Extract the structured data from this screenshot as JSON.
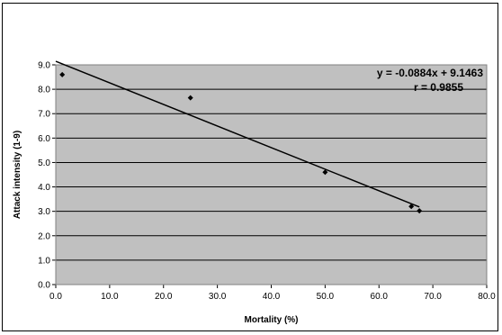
{
  "chart_data": {
    "type": "scatter",
    "xlabel": "Mortality (%)",
    "ylabel": "Attack intensity (1-9)",
    "xlim": [
      0,
      80
    ],
    "ylim": [
      0,
      9
    ],
    "x_ticks": [
      "0.0",
      "10.0",
      "20.0",
      "30.0",
      "40.0",
      "50.0",
      "60.0",
      "70.0",
      "80.0"
    ],
    "y_ticks": [
      "0.0",
      "1.0",
      "2.0",
      "3.0",
      "4.0",
      "5.0",
      "6.0",
      "7.0",
      "8.0",
      "9.0"
    ],
    "grid": "horizontal",
    "background_color": "#c0c0c0",
    "points": [
      {
        "x": 1.2,
        "y": 8.6
      },
      {
        "x": 25.0,
        "y": 7.65
      },
      {
        "x": 50.0,
        "y": 4.6
      },
      {
        "x": 66.0,
        "y": 3.2
      },
      {
        "x": 67.5,
        "y": 3.02
      }
    ],
    "trendline": {
      "slope": -0.0884,
      "intercept": 9.1463,
      "x_range": [
        0,
        67.5
      ]
    },
    "annotations": {
      "equation": "y = -0.0884x + 9.1463",
      "r_value": "r = 0.9855"
    }
  }
}
